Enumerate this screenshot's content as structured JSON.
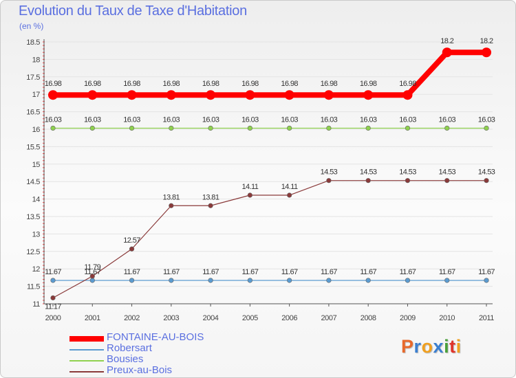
{
  "title": "Evolution du Taux de Taxe d'Habitation",
  "unit_label": "(en %)",
  "logo": {
    "letters": [
      "P",
      "r",
      "o",
      "x",
      "i",
      "t",
      "i"
    ],
    "colors": [
      "#e8692b",
      "#3b7fd0",
      "#f0a020",
      "#3b7fd0",
      "#4aa03a",
      "#e0342b",
      "#f0a020"
    ]
  },
  "chart_data": {
    "type": "line",
    "title": "Evolution du Taux de Taxe d'Habitation",
    "ylabel": "(en %)",
    "xlabel": "",
    "x": [
      "2000",
      "2001",
      "2002",
      "2003",
      "2004",
      "2005",
      "2006",
      "2007",
      "2008",
      "2009",
      "2010",
      "2011"
    ],
    "ylim": [
      11,
      18.5
    ],
    "yticks": [
      "11",
      "11.5",
      "12",
      "12.5",
      "13",
      "13.5",
      "14",
      "14.5",
      "15",
      "15.5",
      "16",
      "16.5",
      "17",
      "17.5",
      "18",
      "18.5"
    ],
    "legend_position": "bottom-left",
    "series": [
      {
        "name": "FONTAINE-AU-BOIS",
        "color": "#ff0000",
        "emphasis": true,
        "values": [
          16.98,
          16.98,
          16.98,
          16.98,
          16.98,
          16.98,
          16.98,
          16.98,
          16.98,
          16.98,
          18.2,
          18.2
        ],
        "labels": [
          "16.98",
          "16.98",
          "16.98",
          "16.98",
          "16.98",
          "16.98",
          "16.98",
          "16.98",
          "16.98",
          "16.98",
          "18.2",
          "18.2"
        ]
      },
      {
        "name": "Robersart",
        "color": "#5b9bd0",
        "emphasis": false,
        "values": [
          11.67,
          11.67,
          11.67,
          11.67,
          11.67,
          11.67,
          11.67,
          11.67,
          11.67,
          11.67,
          11.67,
          11.67
        ],
        "labels": [
          "11.67",
          "11.67",
          "11.67",
          "11.67",
          "11.67",
          "11.67",
          "11.67",
          "11.67",
          "11.67",
          "11.67",
          "11.67",
          "11.67"
        ]
      },
      {
        "name": "Bousies",
        "color": "#8fd14f",
        "emphasis": false,
        "values": [
          16.03,
          16.03,
          16.03,
          16.03,
          16.03,
          16.03,
          16.03,
          16.03,
          16.03,
          16.03,
          16.03,
          16.03
        ],
        "labels": [
          "16.03",
          "16.03",
          "16.03",
          "16.03",
          "16.03",
          "16.03",
          "16.03",
          "16.03",
          "16.03",
          "16.03",
          "16.03",
          "16.03"
        ]
      },
      {
        "name": "Preux-au-Bois",
        "color": "#8a3a3a",
        "emphasis": false,
        "values": [
          11.17,
          11.79,
          12.57,
          13.81,
          13.81,
          14.11,
          14.11,
          14.53,
          14.53,
          14.53,
          14.53,
          14.53
        ],
        "labels": [
          "11.17",
          "11.79",
          "12.57",
          "13.81",
          "13.81",
          "14.11",
          "14.11",
          "14.53",
          "14.53",
          "14.53",
          "14.53",
          "14.53"
        ]
      }
    ]
  }
}
